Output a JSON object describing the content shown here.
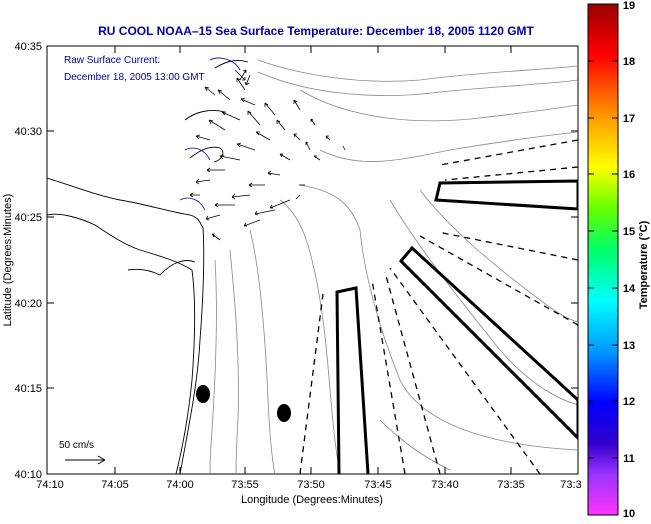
{
  "title": "RU COOL  NOAA–15  Sea Surface Temperature:  December 18, 2005 1120 GMT",
  "current_label": "Raw Surface Current:",
  "current_time": "December 18, 2005 13:00 GMT",
  "scale_label": "50 cm/s",
  "x_axis": {
    "label": "Longitude (Degrees:Minutes)",
    "ticks": [
      "74:10",
      "74:05",
      "74:00",
      "73:55",
      "73:50",
      "73:45",
      "73:40",
      "73:35",
      "73:3"
    ]
  },
  "y_axis": {
    "label": "Latitude (Degrees:Minutes)",
    "ticks": [
      "40:35",
      "40:30",
      "40:25",
      "40:20",
      "40:15",
      "40:10"
    ]
  },
  "colorbar": {
    "label": "Temperature (°C)",
    "ticks": [
      "19",
      "18",
      "17",
      "16",
      "15",
      "14",
      "13",
      "12",
      "11",
      "10"
    ],
    "colors": [
      "#ff33ff",
      "#6600cc",
      "#0000ff",
      "#0099ff",
      "#00ffff",
      "#00ff66",
      "#66ff00",
      "#ffff00",
      "#ff9900",
      "#ff0000",
      "#990000"
    ]
  },
  "colors": {
    "title": "#0000aa",
    "annotation": "#0000aa",
    "axis": "#000000"
  }
}
